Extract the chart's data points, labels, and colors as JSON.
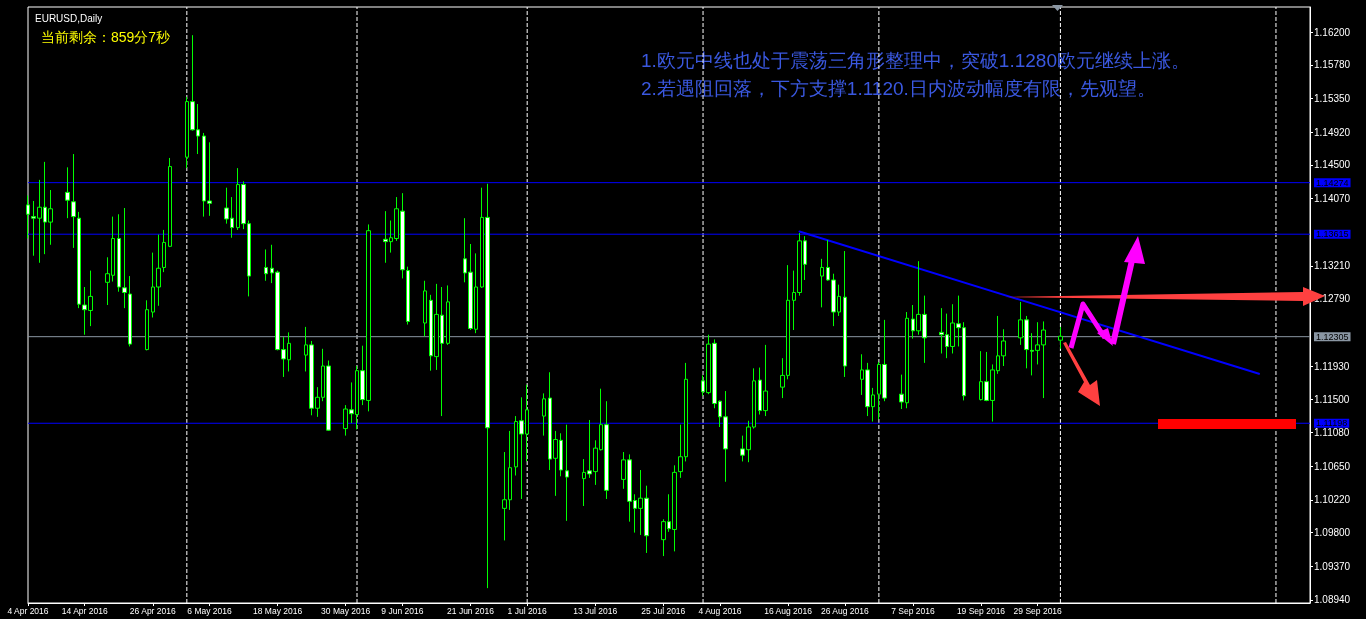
{
  "chart_data": {
    "type": "candlestick",
    "title": "EURUSD,Daily",
    "subtitle": "当前剩余：859分7秒",
    "annotations": [
      "1.欧元中线也处于震荡三角形整理中，突破1.1280欧元继续上涨。",
      "2.若遇阻回落，下方支撑1.1120.日内波动幅度有限，先观望。"
    ],
    "xlim": [
      "2016-04-04",
      "2016-11-16"
    ],
    "xticks": [
      {
        "value": "2016-04-04",
        "label": "4 Apr 2016"
      },
      {
        "value": "2016-04-14",
        "label": "14 Apr 2016"
      },
      {
        "value": "2016-04-26",
        "label": "26 Apr 2016"
      },
      {
        "value": "2016-05-06",
        "label": "6 May 2016"
      },
      {
        "value": "2016-05-18",
        "label": "18 May 2016"
      },
      {
        "value": "2016-05-30",
        "label": "30 May 2016"
      },
      {
        "value": "2016-06-09",
        "label": "9 Jun 2016"
      },
      {
        "value": "2016-06-21",
        "label": "21 Jun 2016"
      },
      {
        "value": "2016-07-01",
        "label": "1 Jul 2016"
      },
      {
        "value": "2016-07-13",
        "label": "13 Jul 2016"
      },
      {
        "value": "2016-07-25",
        "label": "25 Jul 2016"
      },
      {
        "value": "2016-08-04",
        "label": "4 Aug 2016"
      },
      {
        "value": "2016-08-16",
        "label": "16 Aug 2016"
      },
      {
        "value": "2016-08-26",
        "label": "26 Aug 2016"
      },
      {
        "value": "2016-09-07",
        "label": "7 Sep 2016"
      },
      {
        "value": "2016-09-19",
        "label": "19 Sep 2016"
      },
      {
        "value": "2016-09-29",
        "label": "29 Sep 2016"
      }
    ],
    "ylim": [
      1.089,
      1.1652
    ],
    "yticks": [
      {
        "value": 1.162,
        "label": "1.16200"
      },
      {
        "value": 1.1578,
        "label": "1.15780"
      },
      {
        "value": 1.1535,
        "label": "1.15350"
      },
      {
        "value": 1.1492,
        "label": "1.14920"
      },
      {
        "value": 1.145,
        "label": "1.14500"
      },
      {
        "value": 1.1407,
        "label": "1.14070"
      },
      {
        "value": 1.1321,
        "label": "1.13210"
      },
      {
        "value": 1.1279,
        "label": "1.12790"
      },
      {
        "value": 1.1193,
        "label": "1.11930"
      },
      {
        "value": 1.115,
        "label": "1.11500"
      },
      {
        "value": 1.1108,
        "label": "1.11080"
      },
      {
        "value": 1.1065,
        "label": "1.10650"
      },
      {
        "value": 1.1022,
        "label": "1.10220"
      },
      {
        "value": 1.098,
        "label": "1.09800"
      },
      {
        "value": 1.0937,
        "label": "1.09370"
      },
      {
        "value": 1.0894,
        "label": "1.08940"
      }
    ],
    "ref_lines": [
      {
        "axis": "y",
        "value": 1.14274,
        "label": "1.14274",
        "color": "#0000ff"
      },
      {
        "axis": "y",
        "value": 1.13615,
        "label": "1.13615",
        "color": "#0000ff"
      },
      {
        "axis": "y",
        "value": 1.11198,
        "label": "1.11198",
        "color": "#0000ff"
      },
      {
        "axis": "y",
        "value": 1.12305,
        "label": "1.12305",
        "color": "#8a96a3"
      },
      {
        "axis": "x",
        "value": "2016-05-02",
        "color": "#ffffff",
        "line_style": "dashed"
      },
      {
        "axis": "x",
        "value": "2016-06-01",
        "color": "#ffffff",
        "line_style": "dashed"
      },
      {
        "axis": "x",
        "value": "2016-07-01",
        "color": "#ffffff",
        "line_style": "dashed"
      },
      {
        "axis": "x",
        "value": "2016-08-01",
        "color": "#ffffff",
        "line_style": "dashed"
      },
      {
        "axis": "x",
        "value": "2016-09-01",
        "color": "#ffffff",
        "line_style": "dashed"
      },
      {
        "axis": "x",
        "value": "2016-10-03",
        "color": "#ffffff",
        "line_style": "dashed"
      },
      {
        "axis": "x",
        "value": "2016-11-10",
        "color": "#ffffff",
        "line_style": "dashed"
      }
    ],
    "series": [
      {
        "type": "candlestick",
        "color": "#00ff00",
        "x": [
          "2016-04-04",
          "2016-04-05",
          "2016-04-06",
          "2016-04-07",
          "2016-04-08",
          "2016-04-11",
          "2016-04-12",
          "2016-04-13",
          "2016-04-14",
          "2016-04-15",
          "2016-04-18",
          "2016-04-19",
          "2016-04-20",
          "2016-04-21",
          "2016-04-22",
          "2016-04-25",
          "2016-04-26",
          "2016-04-27",
          "2016-04-28",
          "2016-04-29",
          "2016-05-02",
          "2016-05-03",
          "2016-05-04",
          "2016-05-05",
          "2016-05-06",
          "2016-05-09",
          "2016-05-10",
          "2016-05-11",
          "2016-05-12",
          "2016-05-13",
          "2016-05-16",
          "2016-05-17",
          "2016-05-18",
          "2016-05-19",
          "2016-05-20",
          "2016-05-23",
          "2016-05-24",
          "2016-05-25",
          "2016-05-26",
          "2016-05-27",
          "2016-05-30",
          "2016-05-31",
          "2016-06-01",
          "2016-06-02",
          "2016-06-03",
          "2016-06-06",
          "2016-06-07",
          "2016-06-08",
          "2016-06-09",
          "2016-06-10",
          "2016-06-13",
          "2016-06-14",
          "2016-06-15",
          "2016-06-16",
          "2016-06-17",
          "2016-06-20",
          "2016-06-21",
          "2016-06-22",
          "2016-06-23",
          "2016-06-24",
          "2016-06-27",
          "2016-06-28",
          "2016-06-29",
          "2016-06-30",
          "2016-07-01",
          "2016-07-04",
          "2016-07-05",
          "2016-07-06",
          "2016-07-07",
          "2016-07-08",
          "2016-07-11",
          "2016-07-12",
          "2016-07-13",
          "2016-07-14",
          "2016-07-15",
          "2016-07-18",
          "2016-07-19",
          "2016-07-20",
          "2016-07-21",
          "2016-07-22",
          "2016-07-25",
          "2016-07-26",
          "2016-07-27",
          "2016-07-28",
          "2016-07-29",
          "2016-08-01",
          "2016-08-02",
          "2016-08-03",
          "2016-08-04",
          "2016-08-05",
          "2016-08-08",
          "2016-08-09",
          "2016-08-10",
          "2016-08-11",
          "2016-08-12",
          "2016-08-15",
          "2016-08-16",
          "2016-08-17",
          "2016-08-18",
          "2016-08-19",
          "2016-08-22",
          "2016-08-23",
          "2016-08-24",
          "2016-08-25",
          "2016-08-26",
          "2016-08-29",
          "2016-08-30",
          "2016-08-31",
          "2016-09-01",
          "2016-09-02",
          "2016-09-05",
          "2016-09-06",
          "2016-09-07",
          "2016-09-08",
          "2016-09-09",
          "2016-09-12",
          "2016-09-13",
          "2016-09-14",
          "2016-09-15",
          "2016-09-16",
          "2016-09-19",
          "2016-09-20",
          "2016-09-21",
          "2016-09-22",
          "2016-09-23",
          "2016-09-26",
          "2016-09-27",
          "2016-09-28",
          "2016-09-29",
          "2016-09-30",
          "2016-10-03"
        ],
        "ohlc": [
          [
            1.1399,
            1.1411,
            1.1356,
            1.1387
          ],
          [
            1.1384,
            1.1404,
            1.1334,
            1.1382
          ],
          [
            1.1382,
            1.1431,
            1.1325,
            1.1396
          ],
          [
            1.1396,
            1.1454,
            1.1336,
            1.1377
          ],
          [
            1.1377,
            1.1418,
            1.1348,
            1.1394
          ],
          [
            1.1415,
            1.1447,
            1.1382,
            1.1405
          ],
          [
            1.1403,
            1.1464,
            1.1344,
            1.1384
          ],
          [
            1.1382,
            1.139,
            1.1267,
            1.1272
          ],
          [
            1.1271,
            1.1294,
            1.1233,
            1.1265
          ],
          [
            1.1264,
            1.1315,
            1.1244,
            1.1282
          ],
          [
            1.13,
            1.1332,
            1.1271,
            1.1311
          ],
          [
            1.1309,
            1.1384,
            1.1301,
            1.1356
          ],
          [
            1.1356,
            1.1387,
            1.1288,
            1.1294
          ],
          [
            1.1293,
            1.1395,
            1.1267,
            1.1287
          ],
          [
            1.1285,
            1.1308,
            1.1218,
            1.1221
          ],
          [
            1.1214,
            1.1277,
            1.1213,
            1.1265
          ],
          [
            1.1262,
            1.1338,
            1.1255,
            1.1294
          ],
          [
            1.1294,
            1.1361,
            1.127,
            1.1318
          ],
          [
            1.1319,
            1.1367,
            1.1313,
            1.1351
          ],
          [
            1.1346,
            1.1459,
            1.1345,
            1.1448
          ],
          [
            1.146,
            1.1537,
            1.1446,
            1.1531
          ],
          [
            1.1531,
            1.1616,
            1.1494,
            1.1495
          ],
          [
            1.1495,
            1.1528,
            1.1464,
            1.1487
          ],
          [
            1.1487,
            1.1491,
            1.1384,
            1.1404
          ],
          [
            1.1404,
            1.1479,
            1.1385,
            1.1401
          ],
          [
            1.1395,
            1.1421,
            1.1375,
            1.1381
          ],
          [
            1.1382,
            1.1409,
            1.1357,
            1.137
          ],
          [
            1.137,
            1.1446,
            1.1367,
            1.1425
          ],
          [
            1.1425,
            1.1429,
            1.1368,
            1.1375
          ],
          [
            1.1375,
            1.1379,
            1.1282,
            1.1308
          ],
          [
            1.1319,
            1.1342,
            1.1302,
            1.1311
          ],
          [
            1.1318,
            1.1348,
            1.1299,
            1.1312
          ],
          [
            1.1313,
            1.1315,
            1.1213,
            1.1214
          ],
          [
            1.1214,
            1.123,
            1.1179,
            1.1202
          ],
          [
            1.1201,
            1.1236,
            1.1186,
            1.1222
          ],
          [
            1.1207,
            1.1243,
            1.1186,
            1.122
          ],
          [
            1.122,
            1.1225,
            1.113,
            1.1139
          ],
          [
            1.1139,
            1.1166,
            1.1128,
            1.1153
          ],
          [
            1.1153,
            1.1215,
            1.1148,
            1.1193
          ],
          [
            1.1193,
            1.12,
            1.111,
            1.1111
          ],
          [
            1.1113,
            1.1143,
            1.1104,
            1.1138
          ],
          [
            1.1137,
            1.1172,
            1.112,
            1.1132
          ],
          [
            1.1131,
            1.1193,
            1.1112,
            1.1187
          ],
          [
            1.1187,
            1.1219,
            1.1143,
            1.115
          ],
          [
            1.1149,
            1.1374,
            1.1135,
            1.1366
          ],
          [
            1.1355,
            1.1391,
            1.1325,
            1.1352
          ],
          [
            1.1352,
            1.1379,
            1.1338,
            1.1357
          ],
          [
            1.1356,
            1.1409,
            1.1353,
            1.1394
          ],
          [
            1.1391,
            1.1414,
            1.1305,
            1.1316
          ],
          [
            1.1315,
            1.132,
            1.1246,
            1.125
          ],
          [
            1.1248,
            1.1302,
            1.1231,
            1.1289
          ],
          [
            1.1277,
            1.1284,
            1.1187,
            1.1206
          ],
          [
            1.1205,
            1.1298,
            1.1188,
            1.1259
          ],
          [
            1.1258,
            1.1294,
            1.1129,
            1.1222
          ],
          [
            1.1222,
            1.1296,
            1.122,
            1.1275
          ],
          [
            1.133,
            1.1382,
            1.13,
            1.1312
          ],
          [
            1.1313,
            1.1349,
            1.1239,
            1.1241
          ],
          [
            1.124,
            1.1337,
            1.1235,
            1.1294
          ],
          [
            1.1294,
            1.1421,
            1.1293,
            1.1383
          ],
          [
            1.1383,
            1.1426,
            1.0909,
            1.1114
          ],
          [
            1.1011,
            1.1083,
            1.097,
            1.1022
          ],
          [
            1.1022,
            1.111,
            1.1009,
            1.1063
          ],
          [
            1.1064,
            1.1129,
            1.1053,
            1.1122
          ],
          [
            1.1123,
            1.1153,
            1.1023,
            1.1106
          ],
          [
            1.1106,
            1.1169,
            1.1071,
            1.1137
          ],
          [
            1.1129,
            1.1158,
            1.1104,
            1.1151
          ],
          [
            1.1152,
            1.1185,
            1.106,
            1.1074
          ],
          [
            1.1075,
            1.111,
            1.1027,
            1.1099
          ],
          [
            1.1098,
            1.1107,
            1.1052,
            1.106
          ],
          [
            1.1059,
            1.1118,
            1.0995,
            1.1051
          ],
          [
            1.1049,
            1.1074,
            1.1014,
            1.1057
          ],
          [
            1.1059,
            1.1124,
            1.105,
            1.1055
          ],
          [
            1.1058,
            1.1098,
            1.1041,
            1.1088
          ],
          [
            1.1086,
            1.1164,
            1.1085,
            1.1118
          ],
          [
            1.1118,
            1.1148,
            1.1023,
            1.1034
          ],
          [
            1.1048,
            1.1083,
            1.1036,
            1.1073
          ],
          [
            1.1073,
            1.108,
            1.0994,
            1.102
          ],
          [
            1.1021,
            1.1029,
            1.098,
            1.1011
          ],
          [
            1.1011,
            1.106,
            1.0977,
            1.1024
          ],
          [
            1.1024,
            1.104,
            1.0954,
            1.0976
          ],
          [
            1.0971,
            1.0997,
            1.095,
            1.0994
          ],
          [
            1.0994,
            1.1029,
            1.0981,
            1.0985
          ],
          [
            1.0984,
            1.1066,
            1.0956,
            1.1057
          ],
          [
            1.1058,
            1.1118,
            1.105,
            1.1077
          ],
          [
            1.1077,
            1.1197,
            1.1071,
            1.1176
          ],
          [
            1.1174,
            1.1181,
            1.1155,
            1.116
          ],
          [
            1.1159,
            1.1233,
            1.1157,
            1.1221
          ],
          [
            1.1222,
            1.1227,
            1.1139,
            1.1145
          ],
          [
            1.1148,
            1.1149,
            1.1115,
            1.1128
          ],
          [
            1.1128,
            1.1161,
            1.1045,
            1.1087
          ],
          [
            1.1087,
            1.1104,
            1.1071,
            1.1079
          ],
          [
            1.1086,
            1.1123,
            1.107,
            1.1115
          ],
          [
            1.1115,
            1.119,
            1.1113,
            1.1174
          ],
          [
            1.1175,
            1.1191,
            1.1131,
            1.1136
          ],
          [
            1.1136,
            1.122,
            1.1129,
            1.1161
          ],
          [
            1.1166,
            1.1203,
            1.1152,
            1.1181
          ],
          [
            1.1181,
            1.1322,
            1.1176,
            1.1277
          ],
          [
            1.1277,
            1.1315,
            1.1239,
            1.1287
          ],
          [
            1.1287,
            1.1363,
            1.1283,
            1.1353
          ],
          [
            1.1353,
            1.1359,
            1.1303,
            1.1323
          ],
          [
            1.1308,
            1.133,
            1.1268,
            1.1319
          ],
          [
            1.1319,
            1.1354,
            1.1302,
            1.1303
          ],
          [
            1.1303,
            1.1311,
            1.1244,
            1.1262
          ],
          [
            1.1262,
            1.1297,
            1.1257,
            1.1282
          ],
          [
            1.1281,
            1.134,
            1.1179,
            1.1193
          ],
          [
            1.1176,
            1.1208,
            1.1156,
            1.1188
          ],
          [
            1.1188,
            1.1197,
            1.1129,
            1.1141
          ],
          [
            1.1141,
            1.1165,
            1.1122,
            1.1156
          ],
          [
            1.1157,
            1.1198,
            1.1125,
            1.1195
          ],
          [
            1.1195,
            1.1252,
            1.1148,
            1.1152
          ],
          [
            1.1157,
            1.1182,
            1.1138,
            1.1147
          ],
          [
            1.1146,
            1.1262,
            1.1139,
            1.1254
          ],
          [
            1.1253,
            1.1271,
            1.1228,
            1.1238
          ],
          [
            1.1238,
            1.1327,
            1.1233,
            1.1259
          ],
          [
            1.1259,
            1.1283,
            1.1197,
            1.1229
          ],
          [
            1.1236,
            1.1267,
            1.1209,
            1.1233
          ],
          [
            1.1233,
            1.126,
            1.1203,
            1.1218
          ],
          [
            1.1218,
            1.1272,
            1.1209,
            1.1248
          ],
          [
            1.1247,
            1.1283,
            1.1218,
            1.1242
          ],
          [
            1.1242,
            1.1249,
            1.1149,
            1.1155
          ],
          [
            1.115,
            1.1212,
            1.1149,
            1.1173
          ],
          [
            1.1173,
            1.1211,
            1.1148,
            1.1149
          ],
          [
            1.1149,
            1.1195,
            1.1122,
            1.1188
          ],
          [
            1.1187,
            1.1257,
            1.1183,
            1.1206
          ],
          [
            1.1206,
            1.124,
            1.1193,
            1.1225
          ],
          [
            1.1229,
            1.1275,
            1.122,
            1.1252
          ],
          [
            1.1252,
            1.1257,
            1.119,
            1.1214
          ],
          [
            1.1213,
            1.1235,
            1.1181,
            1.1212
          ],
          [
            1.1213,
            1.1249,
            1.1195,
            1.122
          ],
          [
            1.122,
            1.125,
            1.1152,
            1.1239
          ],
          [
            1.1226,
            1.1243,
            1.1215,
            1.1231
          ]
        ]
      },
      {
        "type": "line",
        "color": "#0000ff",
        "x": [
          "2016-08-18",
          "2016-11-07"
        ],
        "values": [
          1.1365,
          1.1183
        ]
      }
    ]
  }
}
